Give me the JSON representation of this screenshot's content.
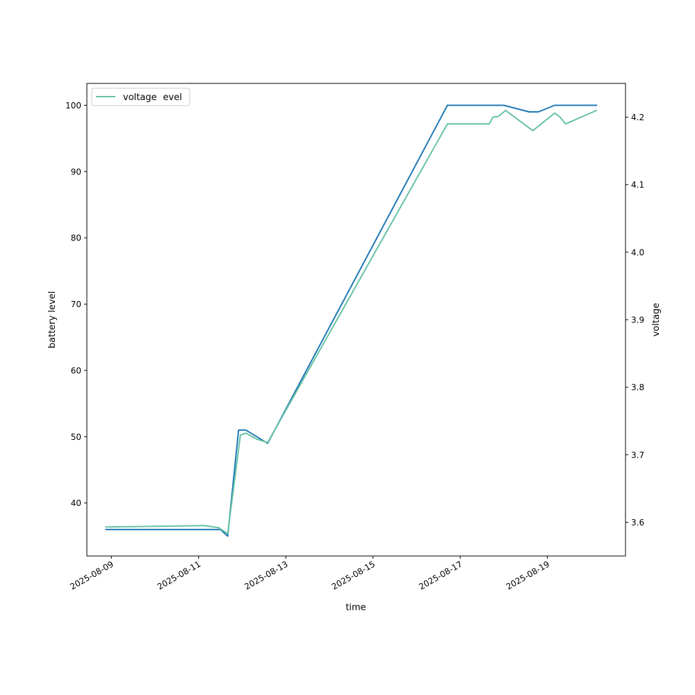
{
  "chart_data": {
    "type": "line",
    "xlabel": "time",
    "ylabel_left": "battery level",
    "ylabel_right": "voltage",
    "x_tick_labels": [
      "2025-08-09",
      "2025-08-11",
      "2025-08-13",
      "2025-08-15",
      "2025-08-17",
      "2025-08-19"
    ],
    "x_tick_dates": [
      "2025-08-09T00:00",
      "2025-08-11T00:00",
      "2025-08-13T00:00",
      "2025-08-15T00:00",
      "2025-08-17T00:00",
      "2025-08-19T00:00"
    ],
    "xlim": [
      "2025-08-08T10:30",
      "2025-08-20T19:00"
    ],
    "y_left_ticks": [
      40,
      50,
      60,
      70,
      80,
      90,
      100
    ],
    "y_left_lim": [
      32,
      103.3
    ],
    "y_right_ticks": [
      "3.6",
      "3.7",
      "3.8",
      "3.9",
      "4.0",
      "4.1",
      "4.2"
    ],
    "y_right_lim": [
      3.55,
      4.25
    ],
    "legend": {
      "placement": "top-left",
      "entries": [
        {
          "label": "battery_level",
          "color": "#1f77b4"
        },
        {
          "label": "voltage",
          "color": "#66c2a5"
        }
      ]
    },
    "series": [
      {
        "name": "battery_level",
        "axis": "left",
        "color": "#1f77b4",
        "points": [
          {
            "x": "2025-08-08T21:00",
            "y": 36
          },
          {
            "x": "2025-08-11T08:00",
            "y": 36
          },
          {
            "x": "2025-08-11T12:00",
            "y": 36
          },
          {
            "x": "2025-08-11T16:00",
            "y": 35
          },
          {
            "x": "2025-08-11T22:00",
            "y": 51
          },
          {
            "x": "2025-08-12T02:00",
            "y": 51
          },
          {
            "x": "2025-08-12T14:00",
            "y": 49
          },
          {
            "x": "2025-08-16T17:00",
            "y": 100
          },
          {
            "x": "2025-08-18T00:00",
            "y": 100
          },
          {
            "x": "2025-08-18T14:00",
            "y": 99
          },
          {
            "x": "2025-08-18T19:00",
            "y": 99
          },
          {
            "x": "2025-08-19T04:00",
            "y": 100
          },
          {
            "x": "2025-08-20T03:00",
            "y": 100
          }
        ]
      },
      {
        "name": "voltage",
        "axis": "right",
        "color": "#66c2a5",
        "points": [
          {
            "x": "2025-08-08T21:00",
            "y": 3.593
          },
          {
            "x": "2025-08-11T03:00",
            "y": 3.595
          },
          {
            "x": "2025-08-11T11:00",
            "y": 3.592
          },
          {
            "x": "2025-08-11T16:00",
            "y": 3.583
          },
          {
            "x": "2025-08-11T23:00",
            "y": 3.729
          },
          {
            "x": "2025-08-12T02:00",
            "y": 3.732
          },
          {
            "x": "2025-08-12T08:00",
            "y": 3.723
          },
          {
            "x": "2025-08-12T14:00",
            "y": 3.718
          },
          {
            "x": "2025-08-16T17:00",
            "y": 4.19
          },
          {
            "x": "2025-08-17T16:00",
            "y": 4.19
          },
          {
            "x": "2025-08-17T18:00",
            "y": 4.2
          },
          {
            "x": "2025-08-17T21:00",
            "y": 4.201
          },
          {
            "x": "2025-08-18T01:00",
            "y": 4.21
          },
          {
            "x": "2025-08-18T16:00",
            "y": 4.18
          },
          {
            "x": "2025-08-19T04:00",
            "y": 4.206
          },
          {
            "x": "2025-08-19T07:00",
            "y": 4.2
          },
          {
            "x": "2025-08-19T10:00",
            "y": 4.19
          },
          {
            "x": "2025-08-20T03:00",
            "y": 4.21
          }
        ]
      }
    ]
  }
}
